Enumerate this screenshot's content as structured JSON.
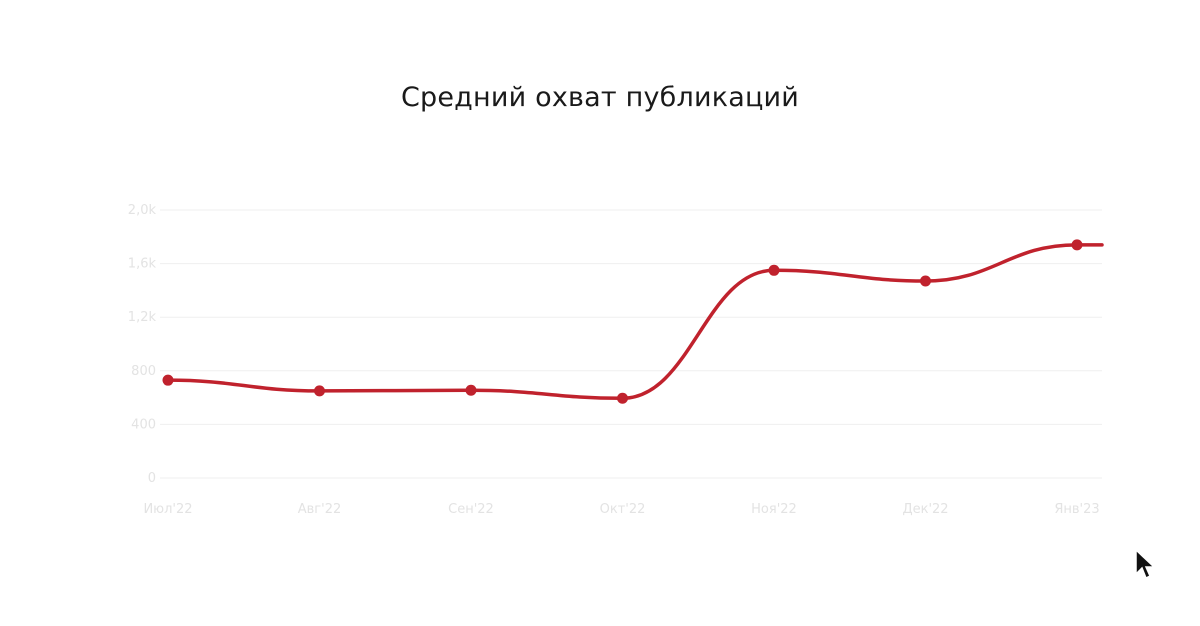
{
  "chart_data": {
    "type": "line",
    "title": "Средний охват публикаций",
    "categories": [
      "Июл'22",
      "Авг'22",
      "Сен'22",
      "Окт'22",
      "Ноя'22",
      "Дек'22",
      "Янв'23"
    ],
    "series": [
      {
        "values": [
          730,
          650,
          655,
          595,
          1550,
          1470,
          1740
        ]
      }
    ],
    "y_ticks": [
      "0",
      "400",
      "800",
      "1,2k",
      "1,6k",
      "2,0k"
    ],
    "ylim": [
      0,
      2000
    ],
    "grid": true,
    "colors": {
      "line": "#c0222d",
      "grid": "#efefef",
      "tick_text": "#e3e3e3"
    }
  },
  "icons": {
    "cursor": "mouse-pointer-icon"
  }
}
